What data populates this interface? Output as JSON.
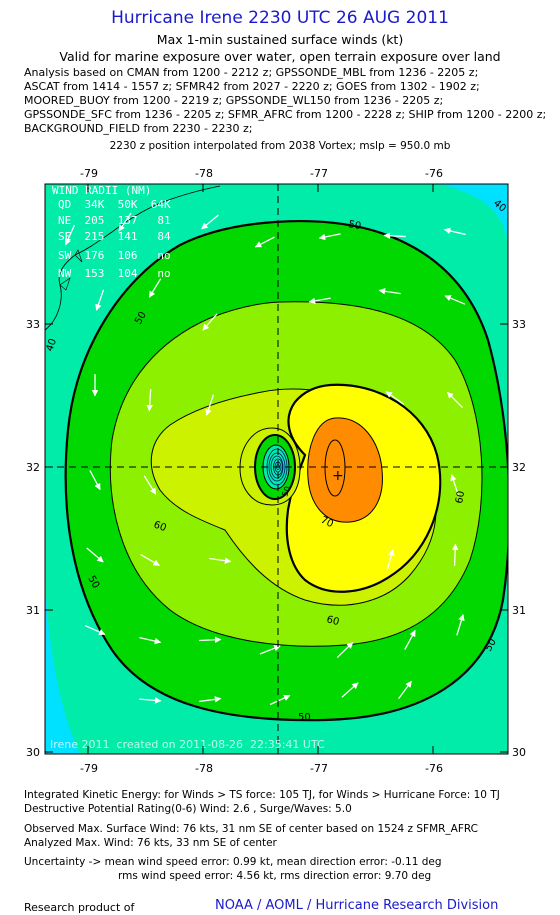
{
  "header": {
    "title": "Hurricane Irene 2230 UTC 26 AUG 2011",
    "subtitle": "Max 1-min sustained surface winds (kt)",
    "valid": "Valid for marine exposure over water, open terrain exposure over land"
  },
  "analysis_lines": [
    "Analysis based on CMAN from 1200 - 2212 z; GPSSONDE_MBL from 1236 - 2205 z;",
    "ASCAT from 1414 - 1557 z; SFMR42 from 2027 - 2220 z; GOES from 1302 - 1902 z;",
    "MOORED_BUOY from 1200 - 2219 z; GPSSONDE_WL150 from 1236 - 2205 z;",
    "GPSSONDE_SFC from 1236 - 2205 z; SFMR_AFRC from 1200 - 2228 z; SHIP from 1200 - 2200 z;",
    "BACKGROUND_FIELD from 2230 - 2230 z;"
  ],
  "position_note": "2230 z position interpolated from 2038 Vortex; mslp = 950.0 mb",
  "map": {
    "lon_ticks": [
      "-79",
      "-78",
      "-77",
      "-76"
    ],
    "lat_ticks": [
      "33",
      "32",
      "31",
      "30"
    ],
    "center_lon": -77.3,
    "center_lat": 31.95,
    "contour_labels": [
      "40",
      "40",
      "50",
      "50",
      "50",
      "50",
      "50",
      "60",
      "60",
      "60",
      "70",
      "50"
    ],
    "wind_radii": {
      "heading": "WIND RADII (NM)",
      "columns": "QD  34K  50K  64K",
      "rows": [
        "NE  205  137   81",
        "SE  215  141   84",
        "SW  176  106   no",
        "NW  153  104   no"
      ]
    },
    "credit": "Irene 2011  created on 2011-08-26  22:35:41 UTC",
    "colors": {
      "c_lt40": "#00e0ff",
      "c_40": "#00eca8",
      "c_50": "#00d800",
      "c_60": "#8cf000",
      "c_65": "#ccf200",
      "c_70": "#ffff00",
      "c_75": "#ff8c00",
      "eye": "#00e0e0"
    }
  },
  "footer": {
    "ike": "Integrated Kinetic Energy:  for Winds > TS force: 105 TJ,  for Winds > Hurricane Force: 10 TJ",
    "dpr": "Destructive Potential Rating(0-6)   Wind: 2.6 , Surge/Waves: 5.0",
    "observed": "Observed Max. Surface Wind: 76 kts, 31 nm SE of center based on 1524 z SFMR_AFRC",
    "analyzed": "Analyzed Max. Wind: 76 kts, 33 nm SE of center",
    "uncert1": "Uncertainty -> mean wind speed error: 0.99 kt,   mean direction error:  -0.11 deg",
    "uncert2": "rms wind speed error: 4.56 kt,   rms direction error: 9.70 deg",
    "research": "Research product of",
    "org": "NOAA / AOML / Hurricane Research Division"
  }
}
